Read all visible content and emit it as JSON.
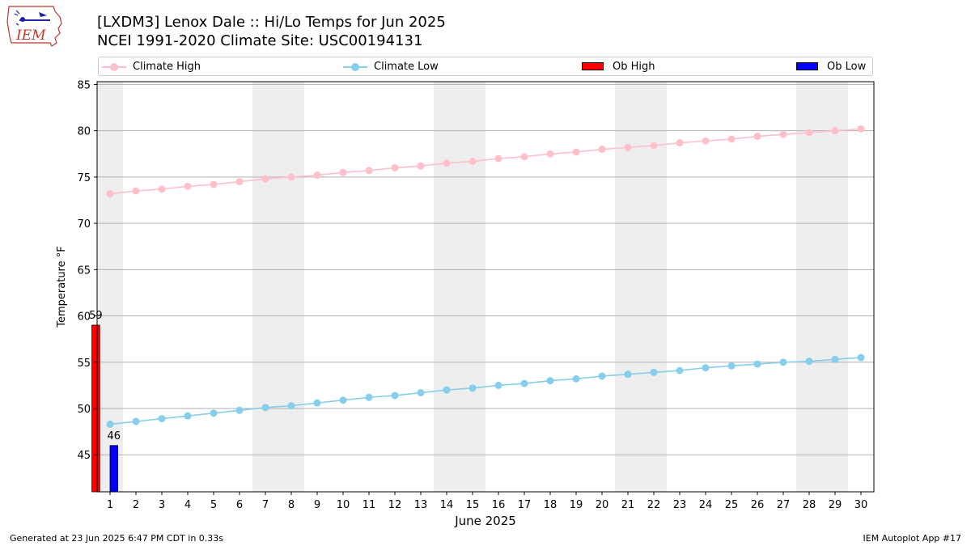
{
  "header": {
    "logo_text": "IEM",
    "title_line1": "[LXDM3] Lenox Dale :: Hi/Lo Temps for Jun 2025",
    "title_line2": "NCEI 1991-2020 Climate Site: USC00194131"
  },
  "legend": {
    "climate_high": "Climate High",
    "climate_low": "Climate Low",
    "ob_high": "Ob High",
    "ob_low": "Ob Low"
  },
  "colors": {
    "climate_high": "#ffc0cb",
    "climate_low": "#87ceeb",
    "ob_high": "#ff0000",
    "ob_low": "#0000ff",
    "weekend_shade": "#eeeeee",
    "grid": "#b0b0b0"
  },
  "chart_data": {
    "type": "bar",
    "xlabel": "June 2025",
    "ylabel": "Temperature °F",
    "xlim": [
      0.5,
      30.5
    ],
    "ylim": [
      41,
      85.3
    ],
    "x": [
      1,
      2,
      3,
      4,
      5,
      6,
      7,
      8,
      9,
      10,
      11,
      12,
      13,
      14,
      15,
      16,
      17,
      18,
      19,
      20,
      21,
      22,
      23,
      24,
      25,
      26,
      27,
      28,
      29,
      30
    ],
    "x_tick_labels": [
      "1",
      "2",
      "3",
      "4",
      "5",
      "6",
      "7",
      "8",
      "9",
      "10",
      "11",
      "12",
      "13",
      "14",
      "15",
      "16",
      "17",
      "18",
      "19",
      "20",
      "21",
      "22",
      "23",
      "24",
      "25",
      "26",
      "27",
      "28",
      "29",
      "30"
    ],
    "y_ticks": [
      45,
      50,
      55,
      60,
      65,
      70,
      75,
      80,
      85
    ],
    "y_tick_labels": [
      "45",
      "50",
      "55",
      "60",
      "65",
      "70",
      "75",
      "80",
      "85"
    ],
    "grid": "horizontal",
    "weekend_days": [
      1,
      7,
      8,
      14,
      15,
      21,
      22,
      28,
      29
    ],
    "series": [
      {
        "name": "Climate High",
        "kind": "line",
        "values": [
          73.2,
          73.5,
          73.7,
          74.0,
          74.2,
          74.5,
          74.8,
          75.0,
          75.2,
          75.5,
          75.7,
          76.0,
          76.2,
          76.5,
          76.7,
          77.0,
          77.2,
          77.5,
          77.7,
          78.0,
          78.2,
          78.4,
          78.7,
          78.9,
          79.1,
          79.4,
          79.6,
          79.8,
          80.0,
          80.2
        ]
      },
      {
        "name": "Climate Low",
        "kind": "line",
        "values": [
          48.3,
          48.6,
          48.9,
          49.2,
          49.5,
          49.8,
          50.1,
          50.3,
          50.6,
          50.9,
          51.2,
          51.4,
          51.7,
          52.0,
          52.2,
          52.5,
          52.7,
          53.0,
          53.2,
          53.5,
          53.7,
          53.9,
          54.1,
          54.4,
          54.6,
          54.8,
          55.0,
          55.1,
          55.3,
          55.5
        ]
      },
      {
        "name": "Ob High",
        "kind": "bar",
        "x": [
          1
        ],
        "values": [
          59
        ],
        "labels": [
          "59"
        ]
      },
      {
        "name": "Ob Low",
        "kind": "bar",
        "x": [
          1
        ],
        "values": [
          46
        ],
        "labels": [
          "46"
        ]
      }
    ]
  },
  "footer": {
    "generated": "Generated at 23 Jun 2025 6:47 PM CDT in 0.33s",
    "app": "IEM Autoplot App #17"
  }
}
